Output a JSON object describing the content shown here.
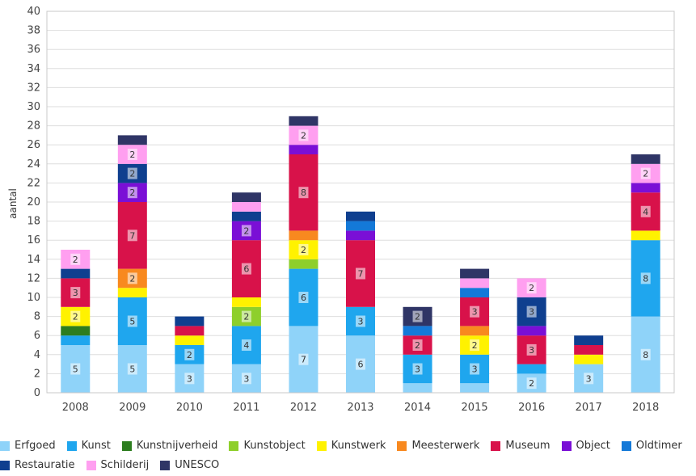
{
  "chart_data": {
    "type": "bar",
    "stacked": true,
    "title": "",
    "xlabel": "",
    "ylabel": "aantal",
    "ylim": [
      0,
      40
    ],
    "yticks": [
      0,
      2,
      4,
      6,
      8,
      10,
      12,
      14,
      16,
      18,
      20,
      22,
      24,
      26,
      28,
      30,
      32,
      34,
      36,
      38,
      40
    ],
    "grid": true,
    "legend_position": "bottom",
    "categories": [
      "2008",
      "2009",
      "2010",
      "2011",
      "2012",
      "2013",
      "2014",
      "2015",
      "2016",
      "2017",
      "2018"
    ],
    "series": [
      {
        "name": "Erfgoed",
        "color": "#8fd3f9",
        "values": [
          5,
          5,
          3,
          3,
          7,
          6,
          1,
          1,
          2,
          3,
          8
        ]
      },
      {
        "name": "Kunst",
        "color": "#1fa6ee",
        "values": [
          1,
          5,
          2,
          4,
          6,
          3,
          3,
          3,
          1,
          0,
          8
        ]
      },
      {
        "name": "Kunstnijverheid",
        "color": "#2d7d1f",
        "values": [
          1,
          0,
          0,
          0,
          0,
          0,
          0,
          0,
          0,
          0,
          0
        ]
      },
      {
        "name": "Kunstobject",
        "color": "#8ecf2b",
        "values": [
          0,
          0,
          0,
          2,
          1,
          0,
          0,
          0,
          0,
          0,
          0
        ]
      },
      {
        "name": "Kunstwerk",
        "color": "#fff200",
        "values": [
          2,
          1,
          1,
          1,
          2,
          0,
          0,
          2,
          0,
          1,
          1
        ]
      },
      {
        "name": "Meesterwerk",
        "color": "#f8891f",
        "values": [
          0,
          2,
          0,
          0,
          1,
          0,
          0,
          1,
          0,
          0,
          0
        ]
      },
      {
        "name": "Museum",
        "color": "#d8124a",
        "values": [
          3,
          7,
          1,
          6,
          8,
          7,
          2,
          3,
          3,
          1,
          4
        ]
      },
      {
        "name": "Object",
        "color": "#7a0fd6",
        "values": [
          0,
          2,
          0,
          2,
          1,
          1,
          0,
          0,
          1,
          0,
          1
        ]
      },
      {
        "name": "Oldtimer",
        "color": "#1479d8",
        "values": [
          0,
          0,
          0,
          0,
          0,
          1,
          1,
          1,
          0,
          0,
          0
        ]
      },
      {
        "name": "Restauratie",
        "color": "#0f3f8f",
        "values": [
          1,
          2,
          1,
          1,
          0,
          1,
          0,
          0,
          3,
          1,
          0
        ]
      },
      {
        "name": "Schilderij",
        "color": "#ff9ff0",
        "values": [
          2,
          2,
          0,
          1,
          2,
          0,
          0,
          1,
          2,
          0,
          2
        ]
      },
      {
        "name": "UNESCO",
        "color": "#2f3566",
        "values": [
          0,
          1,
          0,
          1,
          1,
          0,
          2,
          1,
          0,
          0,
          1
        ]
      }
    ]
  }
}
